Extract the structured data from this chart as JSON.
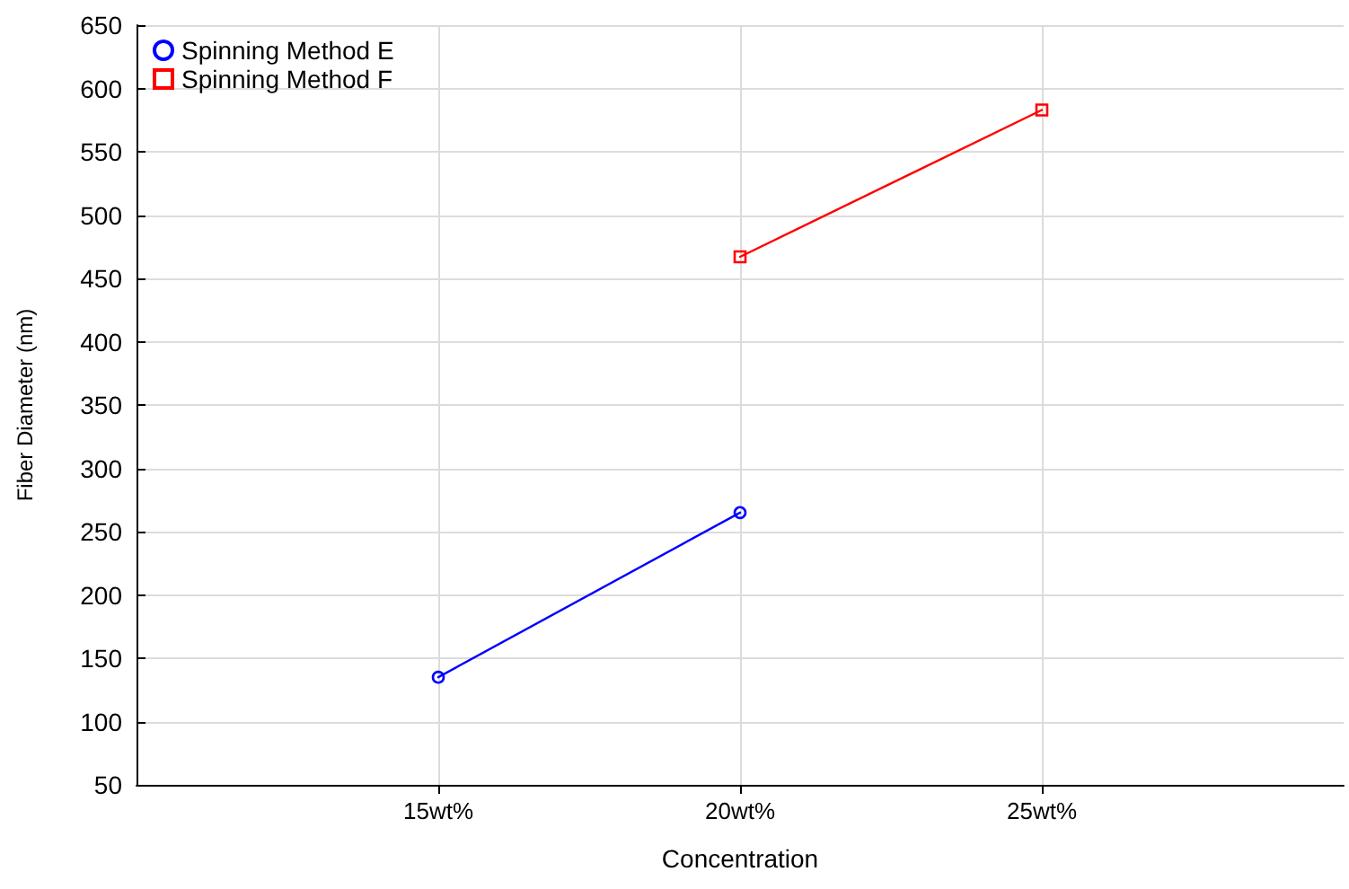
{
  "chart_data": {
    "type": "line",
    "xlabel": "Concentration",
    "ylabel": "Fiber Diameter (nm)",
    "categories": [
      null,
      "15wt%",
      "20wt%",
      "25wt%",
      null
    ],
    "series": [
      {
        "name": "Spinning Method E",
        "color": "#0000ff",
        "marker": "circle",
        "x": [
          "15wt%",
          "20wt%"
        ],
        "values": [
          135,
          265
        ]
      },
      {
        "name": "Spinning Method F",
        "color": "#ff0000",
        "marker": "square",
        "x": [
          "20wt%",
          "25wt%"
        ],
        "values": [
          467,
          583
        ]
      }
    ],
    "ylim": [
      50,
      650
    ],
    "yticks": [
      50,
      100,
      150,
      200,
      250,
      300,
      350,
      400,
      450,
      500,
      550,
      600,
      650
    ],
    "grid": true,
    "legend": "top left"
  }
}
